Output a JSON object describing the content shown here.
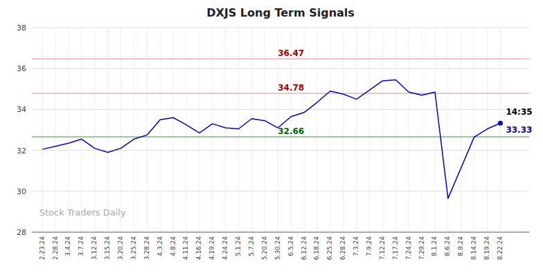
{
  "chart_data": {
    "type": "line",
    "title": "DXJS Long Term Signals",
    "watermark": "Stock Traders Daily",
    "categories": [
      "2.23.24",
      "2.28.24",
      "3.4.24",
      "3.7.24",
      "3.12.24",
      "3.15.24",
      "3.20.24",
      "3.25.24",
      "3.28.24",
      "4.3.24",
      "4.8.24",
      "4.11.24",
      "4.16.24",
      "4.19.24",
      "4.24.24",
      "5.1.24",
      "5.7.24",
      "5.20.24",
      "5.30.24",
      "6.5.24",
      "6.12.24",
      "6.18.24",
      "6.25.24",
      "6.28.24",
      "7.3.24",
      "7.9.24",
      "7.12.24",
      "7.17.24",
      "7.24.24",
      "7.29.24",
      "8.1.24",
      "8.6.24",
      "8.9.24",
      "8.14.24",
      "8.19.24",
      "8.22.24"
    ],
    "values": [
      32.05,
      32.2,
      32.35,
      32.55,
      32.1,
      31.9,
      32.1,
      32.55,
      32.75,
      33.5,
      33.6,
      33.25,
      32.85,
      33.3,
      33.1,
      33.05,
      33.55,
      33.45,
      33.1,
      33.65,
      33.85,
      34.35,
      34.9,
      34.75,
      34.5,
      34.95,
      35.4,
      35.45,
      34.85,
      34.7,
      34.85,
      29.65,
      31.15,
      32.65,
      33.05,
      33.33
    ],
    "color": "#0000cc",
    "hlines": [
      {
        "value": 32.66,
        "label": "32.66",
        "color": "#77bb77",
        "label_color": "#006600"
      },
      {
        "value": 34.78,
        "label": "34.78",
        "color": "#ffaaaa",
        "label_color": "#aa0000"
      },
      {
        "value": 36.47,
        "label": "36.47",
        "color": "#ffaaaa",
        "label_color": "#aa0000"
      }
    ],
    "end_labels": {
      "time": "14:35",
      "value": "33.33"
    },
    "ylim": [
      28,
      38
    ],
    "yticks": [
      28,
      30,
      32,
      34,
      36,
      38
    ],
    "grid": true
  }
}
